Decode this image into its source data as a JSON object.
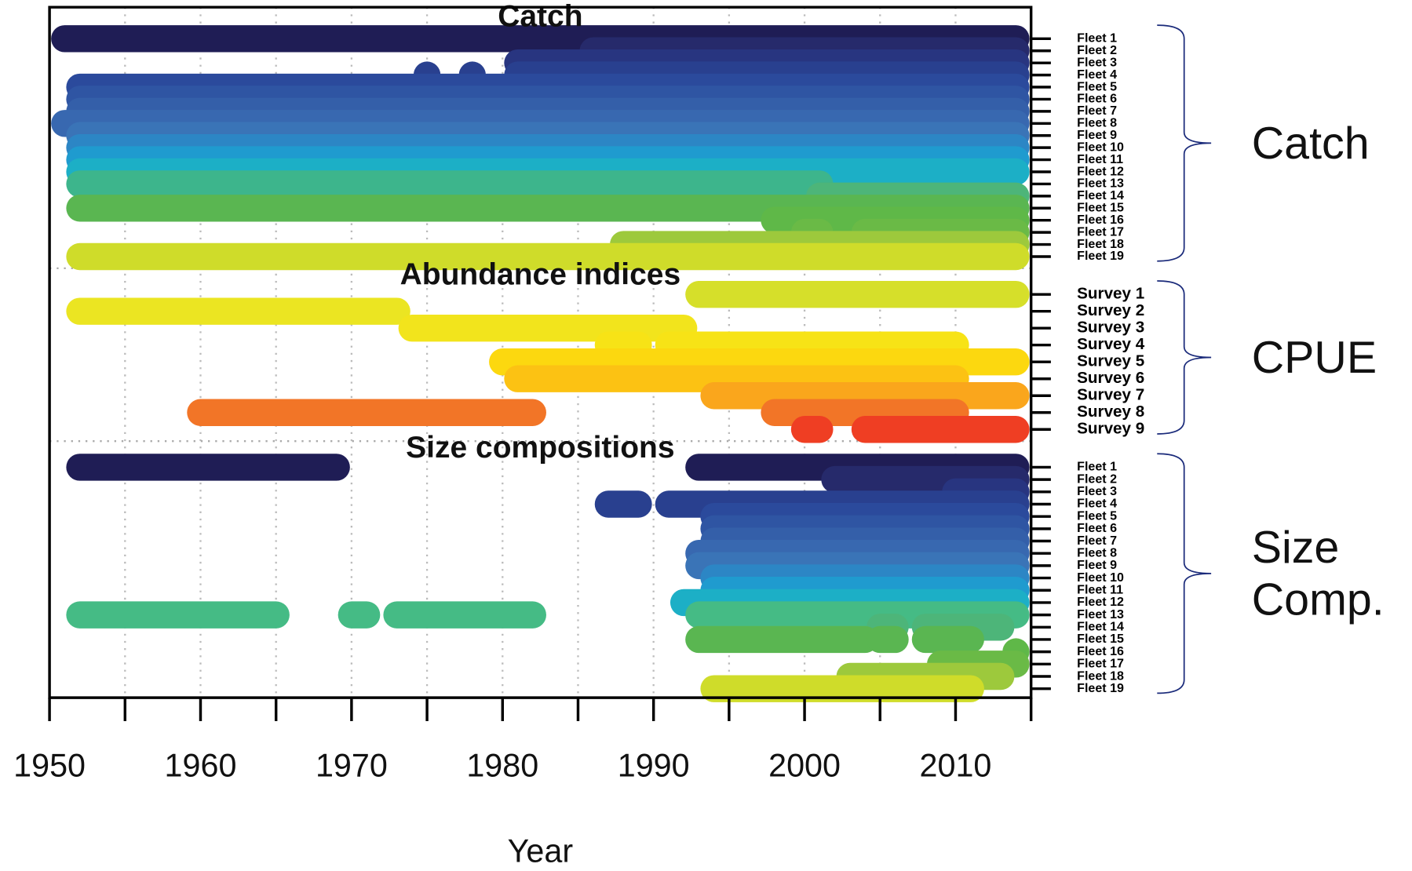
{
  "chart_data": {
    "type": "timeline",
    "x_label": "Year",
    "xlim": [
      1950,
      2015
    ],
    "xticks": [
      1950,
      1960,
      1970,
      1980,
      1990,
      2000,
      2010
    ],
    "minor_xticks": [
      1955,
      1965,
      1975,
      1985,
      1995,
      2005,
      2015
    ],
    "grid": true,
    "groups": [
      {
        "name": "Catch",
        "brace_label": "Catch",
        "rows": [
          {
            "name": "Fleet 1",
            "color": "#1f1d55",
            "segments": [
              [
                1951,
                2014
              ]
            ]
          },
          {
            "name": "Fleet 2",
            "color": "#262a6b",
            "segments": [
              [
                1986,
                2014
              ]
            ]
          },
          {
            "name": "Fleet 3",
            "color": "#283580",
            "segments": [
              [
                1981,
                2014
              ]
            ]
          },
          {
            "name": "Fleet 4",
            "color": "#29408f",
            "segments": [
              [
                1975,
                1975
              ],
              [
                1978,
                1978
              ],
              [
                1981,
                2014
              ]
            ]
          },
          {
            "name": "Fleet 5",
            "color": "#2b4a9c",
            "segments": [
              [
                1952,
                2014
              ]
            ]
          },
          {
            "name": "Fleet 6",
            "color": "#2f55a3",
            "segments": [
              [
                1952,
                2014
              ]
            ]
          },
          {
            "name": "Fleet 7",
            "color": "#345fa9",
            "segments": [
              [
                1952,
                2014
              ]
            ]
          },
          {
            "name": "Fleet 8",
            "color": "#3868b0",
            "segments": [
              [
                1951,
                2014
              ]
            ]
          },
          {
            "name": "Fleet 9",
            "color": "#3a74b7",
            "segments": [
              [
                1952,
                2014
              ]
            ]
          },
          {
            "name": "Fleet 10",
            "color": "#2c86c5",
            "segments": [
              [
                1952,
                2014
              ]
            ]
          },
          {
            "name": "Fleet 11",
            "color": "#1f9bcf",
            "segments": [
              [
                1952,
                2014
              ]
            ]
          },
          {
            "name": "Fleet 12",
            "color": "#1cafc6",
            "segments": [
              [
                1952,
                2014
              ]
            ]
          },
          {
            "name": "Fleet 13",
            "color": "#3db58c",
            "segments": [
              [
                1952,
                2001
              ]
            ]
          },
          {
            "name": "Fleet 14",
            "color": "#4db579",
            "segments": [
              [
                2001,
                2014
              ]
            ]
          },
          {
            "name": "Fleet 15",
            "color": "#5ab651",
            "segments": [
              [
                1952,
                2014
              ]
            ]
          },
          {
            "name": "Fleet 16",
            "color": "#5fb848",
            "segments": [
              [
                1998,
                2014
              ]
            ]
          },
          {
            "name": "Fleet 17",
            "color": "#6aba46",
            "segments": [
              [
                2000,
                2001
              ],
              [
                2004,
                2014
              ]
            ]
          },
          {
            "name": "Fleet 18",
            "color": "#9dc93c",
            "segments": [
              [
                1988,
                2014
              ]
            ]
          },
          {
            "name": "Fleet 19",
            "color": "#cfdc2a",
            "segments": [
              [
                1952,
                2014
              ]
            ]
          }
        ]
      },
      {
        "name": "Abundance indices",
        "brace_label": "CPUE",
        "rows": [
          {
            "name": "Survey 1",
            "color": "#d6df2a",
            "segments": [
              [
                1993,
                2014
              ]
            ]
          },
          {
            "name": "Survey 2",
            "color": "#ebe522",
            "segments": [
              [
                1952,
                1973
              ]
            ]
          },
          {
            "name": "Survey 3",
            "color": "#f2e41c",
            "segments": [
              [
                1974,
                1992
              ]
            ]
          },
          {
            "name": "Survey 4",
            "color": "#f7e316",
            "segments": [
              [
                1987,
                1989
              ],
              [
                1991,
                2010
              ]
            ]
          },
          {
            "name": "Survey 5",
            "color": "#fcd80f",
            "segments": [
              [
                1980,
                2014
              ]
            ]
          },
          {
            "name": "Survey 6",
            "color": "#fcc213",
            "segments": [
              [
                1981,
                2010
              ]
            ]
          },
          {
            "name": "Survey 7",
            "color": "#faa61c",
            "segments": [
              [
                1994,
                2010
              ],
              [
                1999,
                2014
              ]
            ]
          },
          {
            "name": "Survey 8",
            "color": "#f27527",
            "segments": [
              [
                1960,
                1982
              ],
              [
                1998,
                2010
              ]
            ]
          },
          {
            "name": "Survey 9",
            "color": "#ef3e23",
            "segments": [
              [
                2000,
                2001
              ],
              [
                2004,
                2014
              ]
            ]
          }
        ]
      },
      {
        "name": "Size compositions",
        "brace_label": "Size Comp.",
        "rows": [
          {
            "name": "Fleet 1",
            "color": "#1f1d55",
            "segments": [
              [
                1952,
                1969
              ],
              [
                1993,
                2014
              ]
            ]
          },
          {
            "name": "Fleet 2",
            "color": "#262a6b",
            "segments": [
              [
                2002,
                2014
              ]
            ]
          },
          {
            "name": "Fleet 3",
            "color": "#283580",
            "segments": [
              [
                2010,
                2014
              ]
            ]
          },
          {
            "name": "Fleet 4",
            "color": "#29408f",
            "segments": [
              [
                1987,
                1989
              ],
              [
                1991,
                2014
              ]
            ]
          },
          {
            "name": "Fleet 5",
            "color": "#2b4a9c",
            "segments": [
              [
                1994,
                2014
              ]
            ]
          },
          {
            "name": "Fleet 6",
            "color": "#2f55a3",
            "segments": [
              [
                1994,
                2014
              ]
            ]
          },
          {
            "name": "Fleet 7",
            "color": "#345fa9",
            "segments": [
              [
                1994,
                2014
              ]
            ]
          },
          {
            "name": "Fleet 8",
            "color": "#3868b0",
            "segments": [
              [
                1993,
                2014
              ]
            ]
          },
          {
            "name": "Fleet 9",
            "color": "#3a74b7",
            "segments": [
              [
                1993,
                2014
              ]
            ]
          },
          {
            "name": "Fleet 10",
            "color": "#2c86c5",
            "segments": [
              [
                1994,
                2014
              ]
            ]
          },
          {
            "name": "Fleet 11",
            "color": "#1f9bcf",
            "segments": [
              [
                1994,
                2014
              ]
            ]
          },
          {
            "name": "Fleet 12",
            "color": "#1cafc6",
            "segments": [
              [
                1992,
                2014
              ]
            ]
          },
          {
            "name": "Fleet 13",
            "color": "#45bb85",
            "segments": [
              [
                1952,
                1965
              ],
              [
                1970,
                1971
              ],
              [
                1973,
                1982
              ],
              [
                1993,
                2014
              ]
            ]
          },
          {
            "name": "Fleet 14",
            "color": "#4db579",
            "segments": [
              [
                2005,
                2006
              ],
              [
                2008,
                2013
              ]
            ]
          },
          {
            "name": "Fleet 15",
            "color": "#5ab651",
            "segments": [
              [
                1993,
                2004
              ],
              [
                2005,
                2006
              ],
              [
                2008,
                2011
              ]
            ]
          },
          {
            "name": "Fleet 16",
            "color": "#5fb848",
            "segments": [
              [
                2014,
                2014
              ]
            ]
          },
          {
            "name": "Fleet 17",
            "color": "#6aba46",
            "segments": [
              [
                2009,
                2014
              ]
            ]
          },
          {
            "name": "Fleet 18",
            "color": "#9dc93c",
            "segments": [
              [
                2003,
                2013
              ]
            ]
          },
          {
            "name": "Fleet 19",
            "color": "#cfdc2a",
            "segments": [
              [
                1994,
                2011
              ]
            ]
          }
        ]
      }
    ]
  }
}
